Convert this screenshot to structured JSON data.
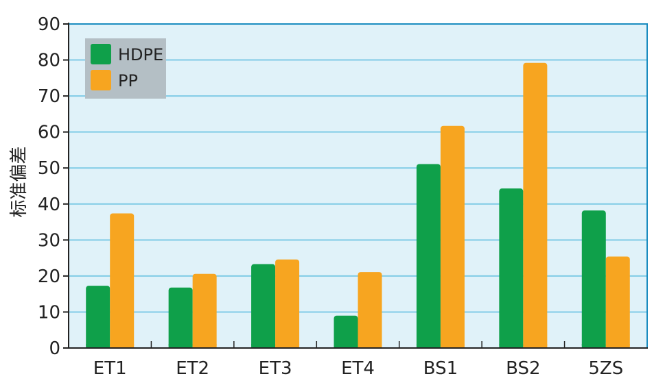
{
  "chart_data": {
    "type": "bar",
    "ylabel": "标准偏差",
    "xlabel": "",
    "ylim": [
      0,
      90
    ],
    "yticks": [
      0,
      10,
      20,
      30,
      40,
      50,
      60,
      70,
      80,
      90
    ],
    "grid": true,
    "legend_position": "top-left",
    "categories": [
      "ET1",
      "ET2",
      "ET3",
      "ET4",
      "BS1",
      "BS2",
      "5ZS"
    ],
    "series": [
      {
        "name": "HDPE",
        "color": "#0fa04a",
        "values": [
          17.3,
          16.8,
          23.3,
          9.0,
          51.1,
          44.3,
          38.2
        ]
      },
      {
        "name": "PP",
        "color": "#f7a520",
        "values": [
          37.4,
          20.6,
          24.6,
          21.1,
          61.7,
          79.2,
          25.4
        ]
      }
    ],
    "colors": {
      "plot_background": "#e0f2f9",
      "gridline": "#7fcbe6",
      "frame": "#1a8cc0",
      "legend_background": "#b4bfc5"
    }
  }
}
